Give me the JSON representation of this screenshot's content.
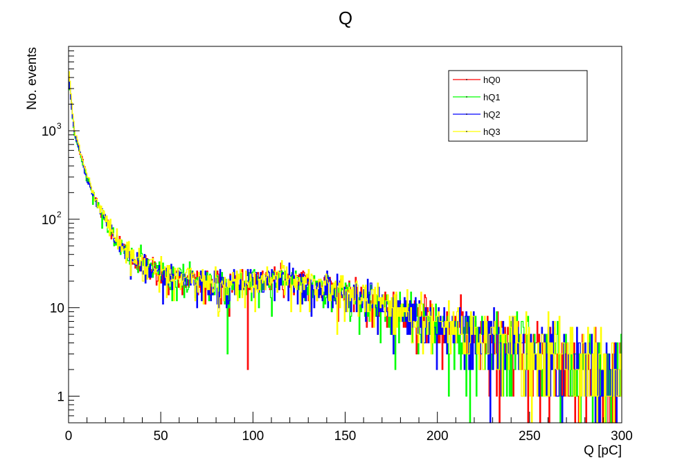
{
  "chart_data": {
    "type": "line",
    "title": "Q",
    "xlabel": "Q [pC]",
    "ylabel": "No. events",
    "xlim": [
      0,
      300
    ],
    "ylim": [
      0.5,
      9000
    ],
    "log_y": true,
    "grid": false,
    "legend_position": "top-right",
    "x_ticks": [
      0,
      50,
      100,
      150,
      200,
      250,
      300
    ],
    "y_ticks": [
      {
        "value": 1,
        "label": "1"
      },
      {
        "value": 10,
        "label": "10"
      },
      {
        "value": 100,
        "label": "10",
        "exponent": "2"
      },
      {
        "value": 1000,
        "label": "10",
        "exponent": "3"
      }
    ],
    "x": [
      0,
      3,
      6,
      10,
      15,
      20,
      25,
      30,
      40,
      50,
      60,
      70,
      80,
      90,
      100,
      110,
      120,
      130,
      140,
      150,
      160,
      170,
      180,
      190,
      200,
      210,
      220,
      230,
      240,
      250,
      260,
      270,
      280,
      290,
      300
    ],
    "series": [
      {
        "name": "hQ0",
        "color": "#ff0000",
        "values": [
          4500,
          1000,
          600,
          300,
          160,
          100,
          65,
          45,
          32,
          25,
          22,
          20,
          19,
          19,
          20,
          22,
          21,
          19,
          17,
          15,
          13,
          11,
          9,
          8,
          7,
          6,
          5,
          4.5,
          4,
          3.5,
          3,
          2.6,
          2.3,
          2,
          1.8
        ]
      },
      {
        "name": "hQ1",
        "color": "#00ff00",
        "values": [
          4200,
          950,
          580,
          290,
          150,
          95,
          62,
          44,
          31,
          24,
          21,
          20,
          19,
          18,
          19,
          21,
          20,
          19,
          16,
          14,
          12,
          10.5,
          9,
          7.5,
          6.5,
          5.8,
          5,
          4.4,
          3.9,
          3.4,
          3,
          2.6,
          2.3,
          2,
          1.8
        ]
      },
      {
        "name": "hQ2",
        "color": "#0000ff",
        "values": [
          4300,
          980,
          590,
          295,
          155,
          98,
          63,
          44,
          31,
          24,
          21,
          19,
          18,
          18,
          20,
          21,
          20,
          18,
          16,
          14,
          12,
          10,
          8.5,
          7.5,
          6.5,
          5.6,
          4.9,
          4.3,
          3.8,
          3.3,
          2.9,
          2.5,
          2.2,
          1.9,
          1.7
        ]
      },
      {
        "name": "hQ3",
        "color": "#ffff00",
        "values": [
          5200,
          1100,
          620,
          310,
          165,
          102,
          66,
          46,
          33,
          25,
          22,
          20,
          19,
          19,
          20,
          22,
          21,
          19,
          17,
          15,
          13,
          11,
          9.5,
          8,
          7,
          6,
          5.2,
          4.6,
          4,
          3.5,
          3.1,
          2.7,
          2.4,
          2.1,
          1.9
        ]
      }
    ]
  }
}
